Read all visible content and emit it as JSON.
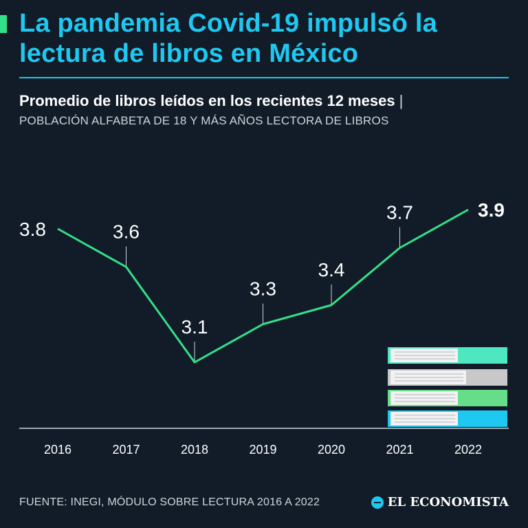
{
  "title": "La pandemia Covid-19 impulsó la lectura de libros en México",
  "subtitle": "Promedio de libros leídos en los recientes 12 meses",
  "subtitle_separator": "|",
  "subtitle2": "POBLACIÓN ALFABETA DE 18 Y MÁS AÑOS LECTORA DE LIBROS",
  "source": "FUENTE: INEGI, MÓDULO SOBRE LECTURA 2016 A 2022",
  "brand": "EL ECONOMISTA",
  "colors": {
    "background": "#111c28",
    "title": "#1fc8f0",
    "line": "#33e08a",
    "books": [
      "#4ee8c0",
      "#c8c8c8",
      "#66dd88",
      "#1fc8f0"
    ]
  },
  "chart_data": {
    "type": "line",
    "x": [
      "2016",
      "2017",
      "2018",
      "2019",
      "2020",
      "2021",
      "2022"
    ],
    "values": [
      3.8,
      3.6,
      3.1,
      3.3,
      3.4,
      3.7,
      3.9
    ],
    "labels": [
      "3.8",
      "3.6",
      "3.1",
      "3.3",
      "3.4",
      "3.7",
      "3.9"
    ],
    "highlight_last": true,
    "grid": false,
    "legend": "none"
  }
}
